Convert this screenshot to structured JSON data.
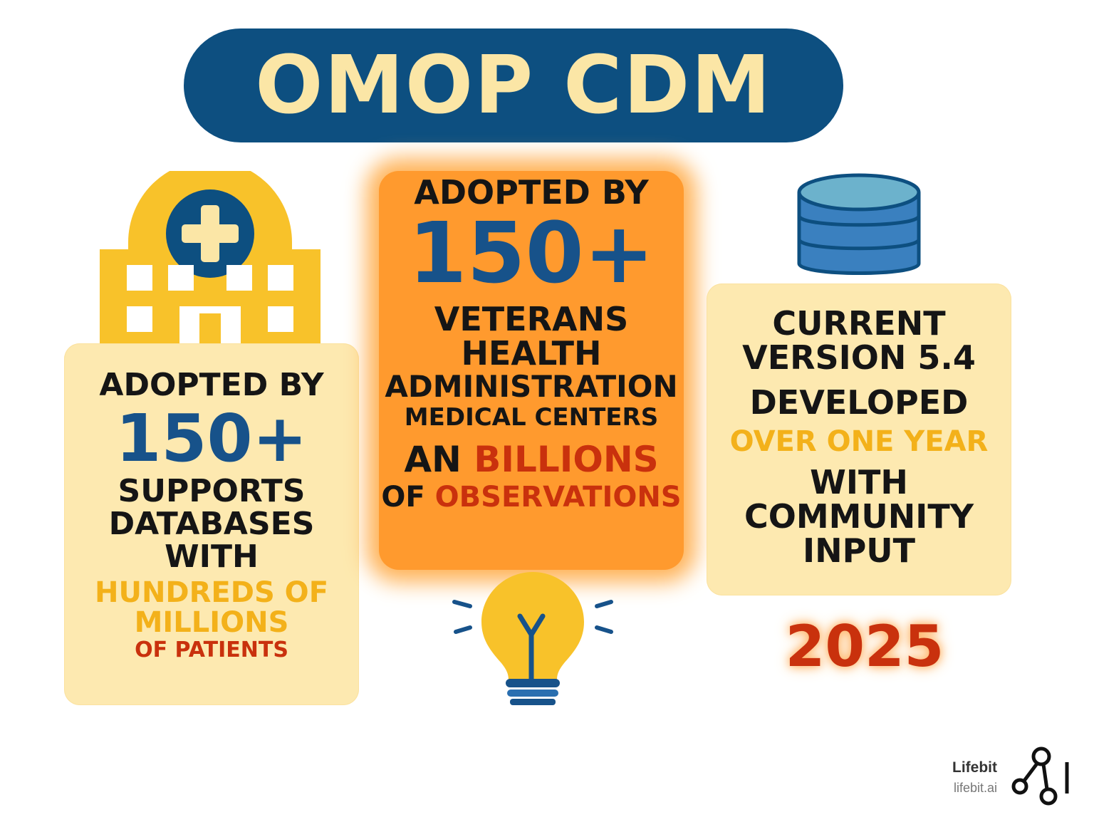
{
  "title": "OMOP CDM",
  "left_card": {
    "adopted": "ADOPTED BY",
    "count": "150+",
    "line1": "SUPPORTS",
    "line2": "DATABASES",
    "line3": "WITH",
    "highlight1": "HUNDREDS OF",
    "highlight2": "MILLIONS",
    "highlight3": "OF PATIENTS"
  },
  "center_card": {
    "adopted": "ADOPTED BY",
    "count": "150+",
    "line1": "VETERANS",
    "line2": "HEALTH",
    "line3": "ADMINISTRATION",
    "line4": "MEDICAL CENTERS",
    "an": "AN",
    "billions": "BILLIONS",
    "of": "OF",
    "observations": "OBSERVATIONS"
  },
  "right_card": {
    "line1": "CURRENT",
    "line2": "VERSION 5.4",
    "line3": "DEVELOPED",
    "highlight": "OVER ONE YEAR",
    "line4": "WITH",
    "line5": "COMMUNITY",
    "line6": "INPUT"
  },
  "year": "2025",
  "brand": {
    "name": "Lifebit",
    "url": "lifebit.ai"
  },
  "icons": {
    "hospital": "hospital-icon",
    "database": "database-icon",
    "lightbulb": "lightbulb-icon",
    "logo": "lifebit-logo-icon"
  },
  "colors": {
    "navy": "#0d4f80",
    "cream": "#fde9b0",
    "hospital_yellow": "#f8c22a",
    "orange": "#ff9a2e",
    "red": "#c9310d",
    "yellow_text": "#f3b11a"
  }
}
